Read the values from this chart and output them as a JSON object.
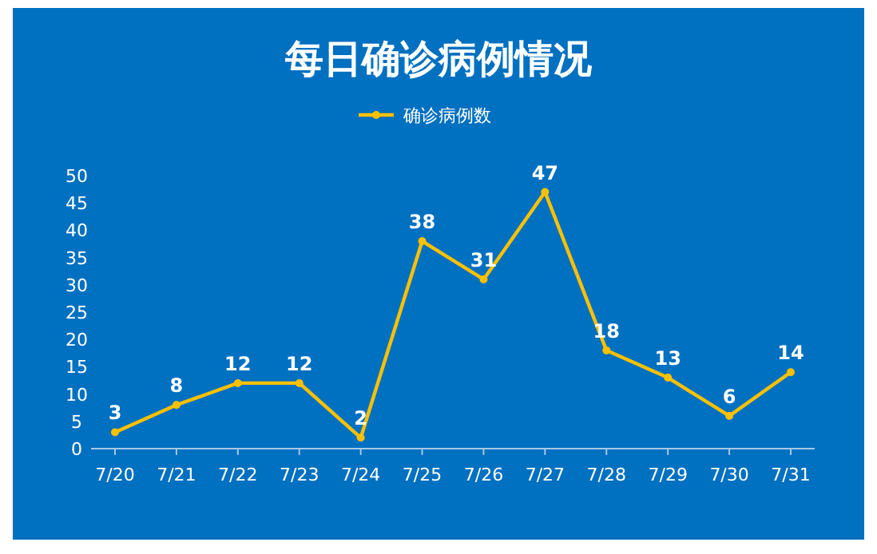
{
  "chart_data": {
    "type": "line",
    "title": "每日确诊病例情况",
    "categories": [
      "7/20",
      "7/21",
      "7/22",
      "7/23",
      "7/24",
      "7/25",
      "7/26",
      "7/27",
      "7/28",
      "7/29",
      "7/30",
      "7/31"
    ],
    "series": [
      {
        "name": "确诊病例数",
        "color": "#ffc000",
        "values": [
          3,
          8,
          12,
          12,
          2,
          38,
          31,
          47,
          18,
          13,
          6,
          14
        ]
      }
    ],
    "ylim": [
      0,
      50
    ],
    "yticks": [
      0,
      5,
      10,
      15,
      20,
      25,
      30,
      35,
      40,
      45,
      50
    ],
    "data_labels": true,
    "marker": "circle",
    "legend": "top",
    "grid": false
  }
}
